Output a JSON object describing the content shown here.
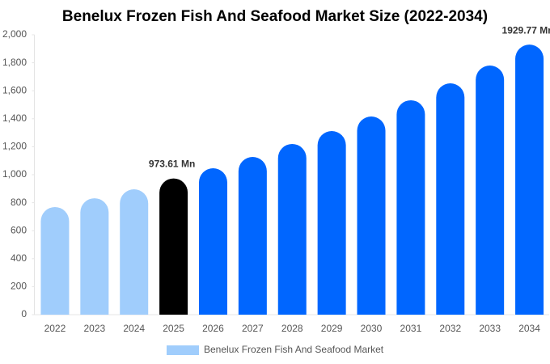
{
  "chart_data": {
    "type": "bar",
    "title": "Benelux Frozen Fish And Seafood Market Size (2022-2034)",
    "categories": [
      "2022",
      "2023",
      "2024",
      "2025",
      "2026",
      "2027",
      "2028",
      "2029",
      "2030",
      "2031",
      "2032",
      "2033",
      "2034"
    ],
    "series": [
      {
        "name": "Benelux Frozen Fish And Seafood Market",
        "color": "#a0cdfc",
        "colors": [
          "#a0cdfc",
          "#a0cdfc",
          "#a0cdfc",
          "#000000",
          "#0066ff",
          "#0066ff",
          "#0066ff",
          "#0066ff",
          "#0066ff",
          "#0066ff",
          "#0066ff",
          "#0066ff",
          "#0066ff"
        ],
        "values": [
          769,
          832,
          896,
          973.61,
          1046,
          1127,
          1220,
          1312,
          1416,
          1532,
          1653,
          1780,
          1929.77
        ],
        "value_labels": [
          null,
          null,
          null,
          "973.61 Mn",
          null,
          null,
          null,
          null,
          null,
          null,
          null,
          null,
          "1929.77 Mn"
        ]
      }
    ],
    "ylim": [
      0,
      2000
    ],
    "yticks": [
      0,
      200,
      400,
      600,
      800,
      {
        "value": 1000,
        "label": "1,000"
      },
      {
        "value": 1200,
        "label": "1,200"
      },
      {
        "value": 1400,
        "label": "1,400"
      },
      {
        "value": 1600,
        "label": "1,600"
      },
      {
        "value": 1800,
        "label": "1,800"
      },
      {
        "value": 2000,
        "label": "2,000"
      }
    ],
    "grid": false
  }
}
